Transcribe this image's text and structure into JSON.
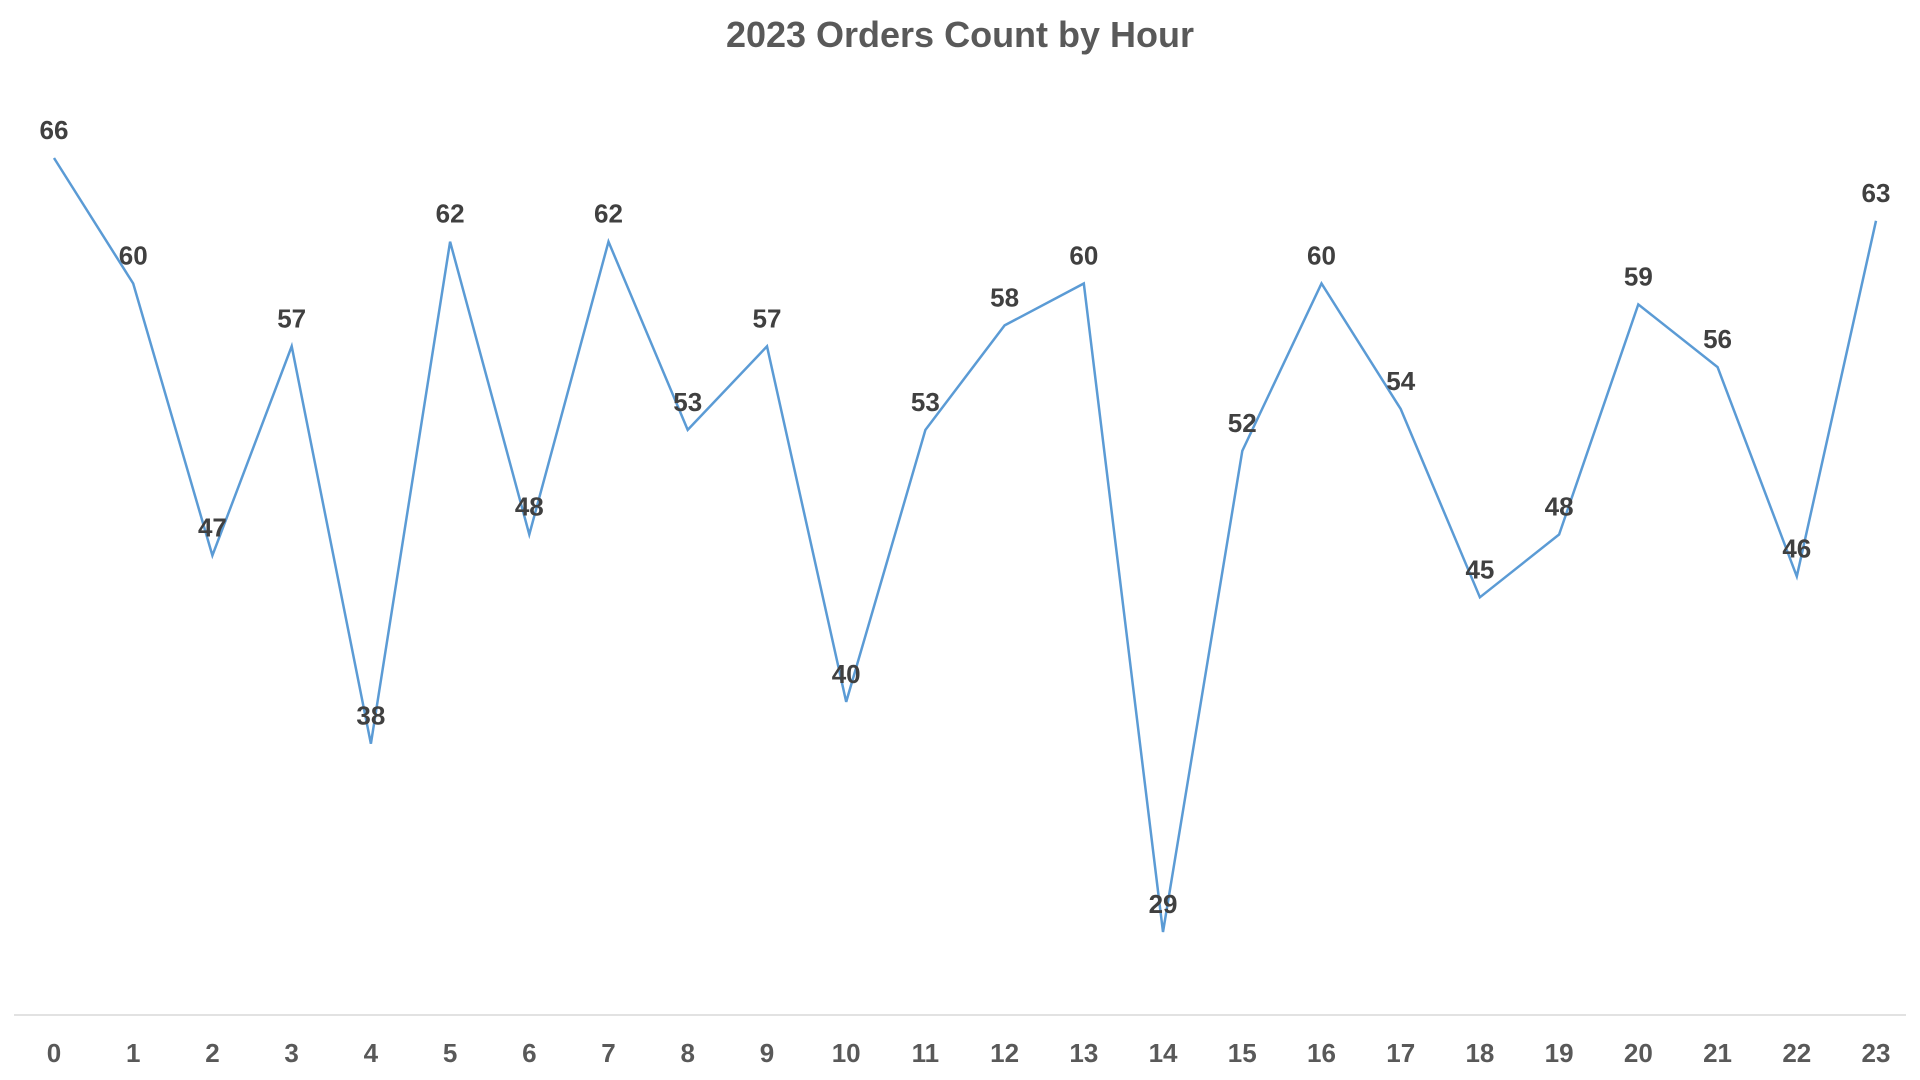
{
  "chart_data": {
    "type": "line",
    "title": "2023 Orders Count by Hour",
    "xlabel": "",
    "ylabel": "",
    "categories": [
      "0",
      "1",
      "2",
      "3",
      "4",
      "5",
      "6",
      "7",
      "8",
      "9",
      "10",
      "11",
      "12",
      "13",
      "14",
      "15",
      "16",
      "17",
      "18",
      "19",
      "20",
      "21",
      "22",
      "23"
    ],
    "series": [
      {
        "values": [
          66,
          60,
          47,
          57,
          38,
          62,
          48,
          62,
          53,
          57,
          40,
          53,
          58,
          60,
          29,
          52,
          60,
          54,
          45,
          48,
          59,
          56,
          46,
          63
        ]
      }
    ],
    "ylim": [
      20,
      73
    ],
    "grid": false,
    "legend": "none",
    "line_color": "#5B9BD5",
    "axis_color": "#D9D9D9"
  }
}
